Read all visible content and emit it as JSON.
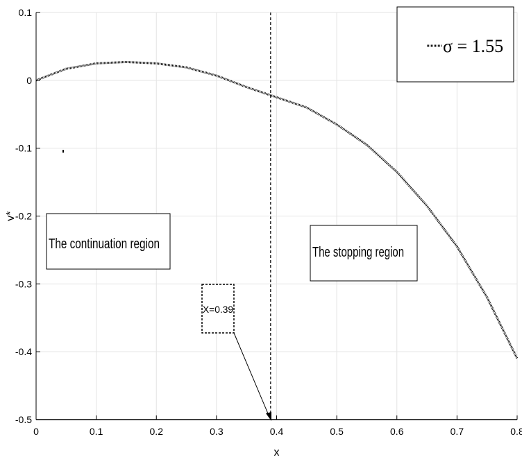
{
  "chart_data": {
    "type": "line",
    "xlabel": "x",
    "ylabel": "v*",
    "xlim": [
      0,
      0.8
    ],
    "ylim": [
      -0.5,
      0.1
    ],
    "xticks": [
      "0",
      "0.1",
      "0.2",
      "0.3",
      "0.4",
      "0.5",
      "0.6",
      "0.7",
      "0.8"
    ],
    "yticks": [
      "0.1",
      "0",
      "-0.1",
      "-0.2",
      "-0.3",
      "-0.4",
      "-0.5"
    ],
    "grid": true,
    "legend": {
      "label": "σ = 1.55",
      "position": "top-right"
    },
    "series": [
      {
        "name": "σ = 1.55",
        "style": "dotted",
        "color": "#000000",
        "x": [
          0,
          0.05,
          0.1,
          0.15,
          0.2,
          0.25,
          0.3,
          0.35,
          0.4,
          0.45,
          0.5,
          0.55,
          0.6,
          0.65,
          0.7,
          0.75,
          0.8
        ],
        "y": [
          0,
          0.017,
          0.025,
          0.027,
          0.025,
          0.019,
          0.007,
          -0.01,
          -0.025,
          -0.04,
          -0.065,
          -0.095,
          -0.135,
          -0.185,
          -0.245,
          -0.32,
          -0.41
        ]
      }
    ],
    "threshold": {
      "x": 0.39,
      "style": "dashed"
    },
    "annotations": {
      "continuation": "The continuation region",
      "stopping": "The stopping region",
      "threshold_label": "X=0.39"
    }
  }
}
